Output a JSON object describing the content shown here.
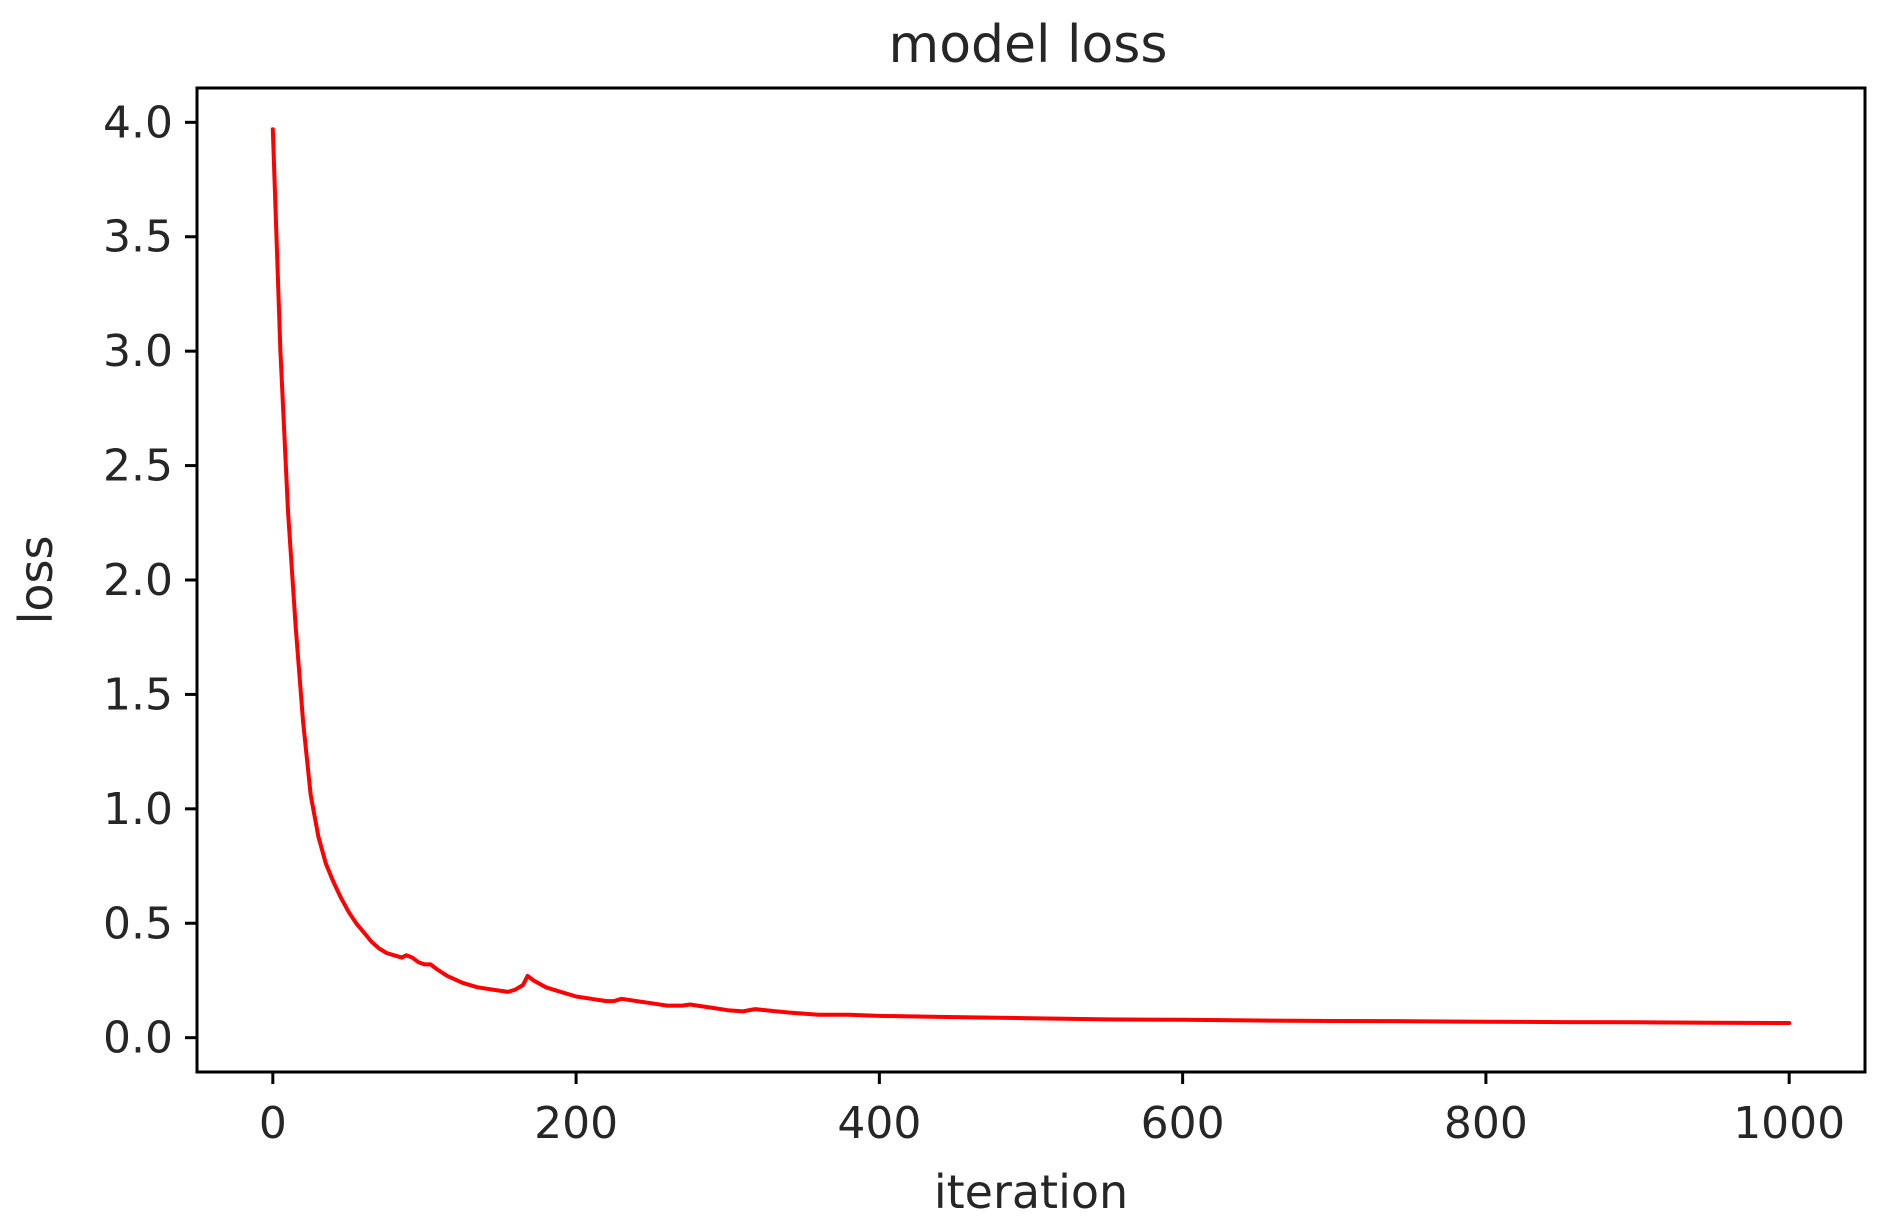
{
  "chart_data": {
    "type": "line",
    "title": "model loss",
    "xlabel": "iteration",
    "ylabel": "loss",
    "xlim": [
      -50,
      1050
    ],
    "ylim": [
      -0.15,
      4.15
    ],
    "xticks": [
      0,
      200,
      400,
      600,
      800,
      1000
    ],
    "xtick_labels": [
      "0",
      "200",
      "400",
      "600",
      "800",
      "1000"
    ],
    "yticks": [
      0.0,
      0.5,
      1.0,
      1.5,
      2.0,
      2.5,
      3.0,
      3.5,
      4.0
    ],
    "ytick_labels": [
      "0.0",
      "0.5",
      "1.0",
      "1.5",
      "2.0",
      "2.5",
      "3.0",
      "3.5",
      "4.0"
    ],
    "grid": false,
    "legend": "none",
    "series": [
      {
        "color": "#ff0000",
        "x": [
          0,
          5,
          10,
          15,
          20,
          25,
          30,
          35,
          40,
          45,
          50,
          55,
          60,
          65,
          70,
          75,
          80,
          85,
          88,
          92,
          96,
          100,
          104,
          108,
          115,
          125,
          135,
          145,
          155,
          160,
          165,
          168,
          172,
          180,
          190,
          200,
          210,
          220,
          225,
          230,
          240,
          250,
          260,
          270,
          275,
          280,
          290,
          300,
          310,
          318,
          325,
          340,
          360,
          380,
          400,
          450,
          500,
          550,
          600,
          650,
          700,
          750,
          800,
          850,
          900,
          950,
          1000
        ],
        "y": [
          3.97,
          3.0,
          2.3,
          1.8,
          1.38,
          1.06,
          0.88,
          0.76,
          0.68,
          0.61,
          0.55,
          0.5,
          0.46,
          0.42,
          0.39,
          0.37,
          0.36,
          0.35,
          0.36,
          0.35,
          0.33,
          0.32,
          0.32,
          0.3,
          0.27,
          0.24,
          0.22,
          0.21,
          0.2,
          0.21,
          0.23,
          0.27,
          0.25,
          0.22,
          0.2,
          0.18,
          0.17,
          0.16,
          0.16,
          0.17,
          0.16,
          0.15,
          0.14,
          0.14,
          0.145,
          0.14,
          0.13,
          0.12,
          0.115,
          0.125,
          0.12,
          0.11,
          0.1,
          0.1,
          0.095,
          0.09,
          0.085,
          0.08,
          0.078,
          0.075,
          0.073,
          0.072,
          0.07,
          0.068,
          0.067,
          0.065,
          0.064
        ]
      }
    ]
  }
}
